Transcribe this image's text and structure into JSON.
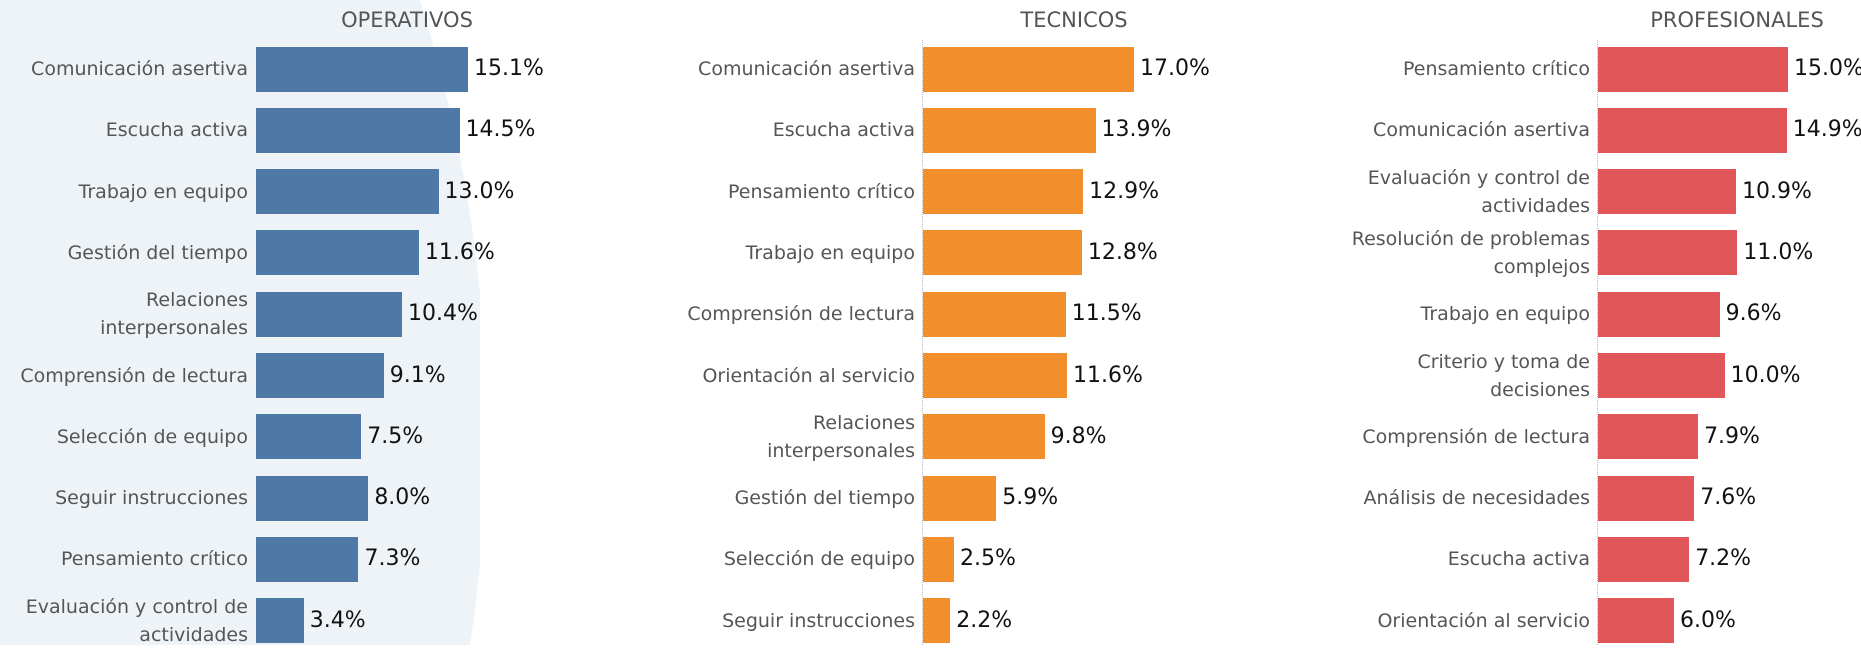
{
  "chart_data": [
    {
      "type": "bar",
      "title": "OPERATIVOS",
      "color": "#4e79a7",
      "categories": [
        "Comunicación asertiva",
        "Escucha activa",
        "Trabajo en equipo",
        "Gestión del tiempo",
        "Relaciones interpersonales",
        "Comprensión de lectura",
        "Selección de equipo",
        "Seguir instrucciones",
        "Pensamiento crítico",
        "Evaluación y control de actividades"
      ],
      "values": [
        15.1,
        14.5,
        13.0,
        11.6,
        10.4,
        9.1,
        7.5,
        8.0,
        7.3,
        3.4
      ],
      "value_labels": [
        "15.1%",
        "14.5%",
        "13.0%",
        "11.6%",
        "10.4%",
        "9.1%",
        "7.5%",
        "8.0%",
        "7.3%",
        "3.4%"
      ]
    },
    {
      "type": "bar",
      "title": "TECNICOS",
      "color": "#f28e2b",
      "categories": [
        "Comunicación asertiva",
        "Escucha activa",
        "Pensamiento crítico",
        "Trabajo en equipo",
        "Comprensión de lectura",
        "Orientación al servicio",
        "Relaciones interpersonales",
        "Gestión del tiempo",
        "Selección de equipo",
        "Seguir instrucciones"
      ],
      "values": [
        17.0,
        13.9,
        12.9,
        12.8,
        11.5,
        11.6,
        9.8,
        5.9,
        2.5,
        2.2
      ],
      "value_labels": [
        "17.0%",
        "13.9%",
        "12.9%",
        "12.8%",
        "11.5%",
        "11.6%",
        "9.8%",
        "5.9%",
        "2.5%",
        "2.2%"
      ]
    },
    {
      "type": "bar",
      "title": "PROFESIONALES",
      "color": "#e15759",
      "categories": [
        "Pensamiento crítico",
        "Comunicación asertiva",
        "Evaluación y control de actividades",
        "Resolución de problemas complejos",
        "Trabajo en equipo",
        "Criterio y toma de decisiones",
        "Comprensión de lectura",
        "Análisis de necesidades",
        "Escucha activa",
        "Orientación al servicio"
      ],
      "values": [
        15.0,
        14.9,
        10.9,
        11.0,
        9.6,
        10.0,
        7.9,
        7.6,
        7.2,
        6.0
      ],
      "value_labels": [
        "15.0%",
        "14.9%",
        "10.9%",
        "11.0%",
        "9.6%",
        "10.0%",
        "7.9%",
        "7.6%",
        "7.2%",
        "6.0%"
      ]
    }
  ]
}
